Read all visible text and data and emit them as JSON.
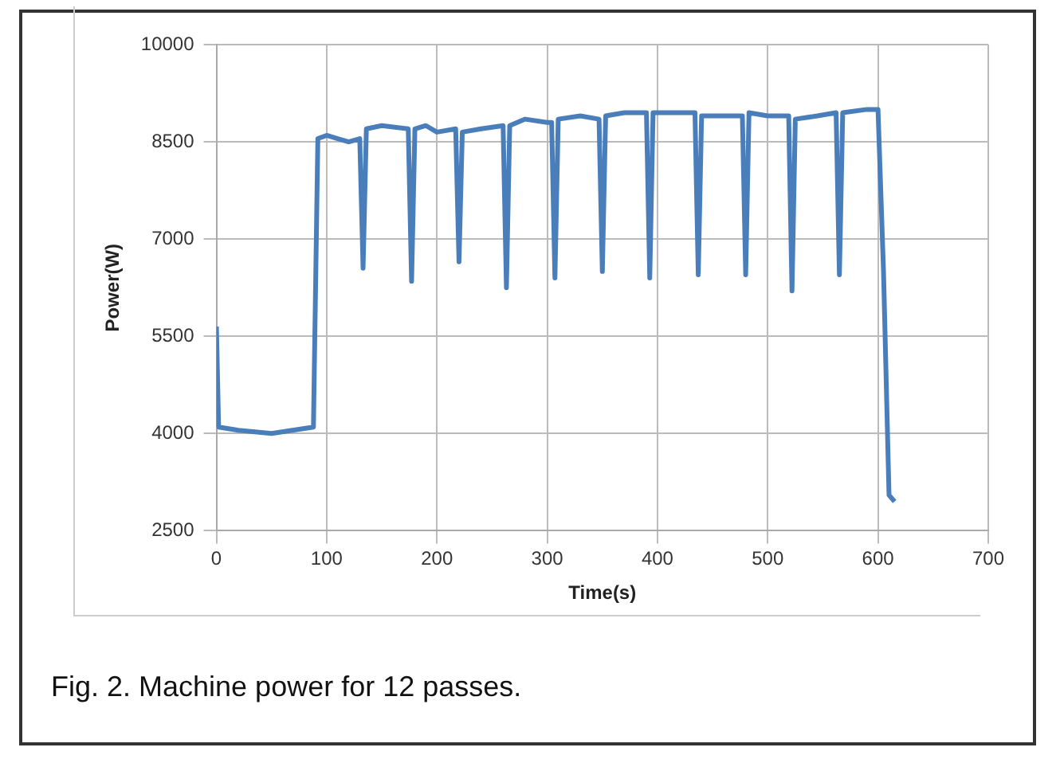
{
  "chart_data": {
    "type": "line",
    "xlabel": "Time(s)",
    "ylabel": "Power(W)",
    "annotations": [
      "Fig. 2. Machine power for 12 passes."
    ],
    "xlim": [
      0,
      700
    ],
    "xticks": [
      0,
      100,
      200,
      300,
      400,
      500,
      600,
      700
    ],
    "ylim": [
      2500,
      10000
    ],
    "yticks": [
      2500,
      4000,
      5500,
      7000,
      8500,
      10000
    ],
    "grid": true,
    "marker": "none",
    "line_style": "solid",
    "series": [
      {
        "color": "#4a7ebb",
        "x": [
          0,
          2,
          20,
          50,
          88,
          92,
          100,
          110,
          120,
          130,
          133,
          136,
          150,
          174,
          177,
          180,
          190,
          200,
          217,
          220,
          223,
          240,
          260,
          263,
          266,
          280,
          300,
          304,
          307,
          310,
          330,
          347,
          350,
          353,
          370,
          390,
          393,
          396,
          420,
          434,
          437,
          440,
          460,
          477,
          480,
          483,
          500,
          519,
          522,
          525,
          545,
          562,
          565,
          568,
          590,
          600,
          605,
          610,
          615
        ],
        "values": [
          5650,
          4100,
          4050,
          4000,
          4100,
          8550,
          8600,
          8550,
          8500,
          8550,
          6550,
          8700,
          8750,
          8700,
          6350,
          8700,
          8750,
          8650,
          8700,
          6650,
          8650,
          8700,
          8750,
          6250,
          8750,
          8850,
          8800,
          8800,
          6400,
          8850,
          8900,
          8850,
          6500,
          8900,
          8950,
          8950,
          6400,
          8950,
          8950,
          8950,
          6450,
          8900,
          8900,
          8900,
          6450,
          8950,
          8900,
          8900,
          6200,
          8850,
          8900,
          8950,
          6450,
          8950,
          9000,
          9000,
          6500,
          3050,
          2950
        ]
      }
    ]
  }
}
